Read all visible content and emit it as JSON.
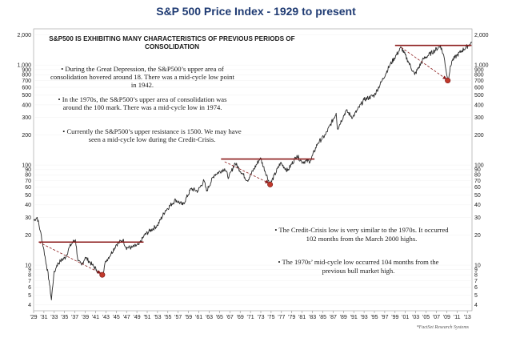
{
  "chart_data": {
    "type": "line",
    "title": "S&P 500 Price Index - 1929 to present",
    "y_scale": "log",
    "ylim": [
      3.5,
      2300
    ],
    "xlim": [
      1929,
      2013.9
    ],
    "y_ticks": [
      {
        "v": 2000,
        "label": "2,000"
      },
      {
        "v": 1000,
        "label": "1,000"
      },
      {
        "v": 900,
        "label": "900"
      },
      {
        "v": 800,
        "label": "800"
      },
      {
        "v": 700,
        "label": "700"
      },
      {
        "v": 600,
        "label": "600"
      },
      {
        "v": 500,
        "label": "500"
      },
      {
        "v": 400,
        "label": "400"
      },
      {
        "v": 300,
        "label": "300"
      },
      {
        "v": 200,
        "label": "200"
      },
      {
        "v": 100,
        "label": "100"
      },
      {
        "v": 90,
        "label": "90"
      },
      {
        "v": 80,
        "label": "80"
      },
      {
        "v": 70,
        "label": "70"
      },
      {
        "v": 60,
        "label": "60"
      },
      {
        "v": 50,
        "label": "50"
      },
      {
        "v": 40,
        "label": "40"
      },
      {
        "v": 30,
        "label": "30"
      },
      {
        "v": 20,
        "label": "20"
      },
      {
        "v": 10,
        "label": "10"
      },
      {
        "v": 9,
        "label": "9"
      },
      {
        "v": 8,
        "label": "8"
      },
      {
        "v": 7,
        "label": "7"
      },
      {
        "v": 6,
        "label": "6"
      },
      {
        "v": 5,
        "label": "5"
      },
      {
        "v": 4,
        "label": "4"
      }
    ],
    "x_ticks": [
      {
        "v": 1929,
        "label": "'29"
      },
      {
        "v": 1931,
        "label": "'31"
      },
      {
        "v": 1933,
        "label": "'33"
      },
      {
        "v": 1935,
        "label": "'35"
      },
      {
        "v": 1937,
        "label": "'37"
      },
      {
        "v": 1939,
        "label": "'39"
      },
      {
        "v": 1941,
        "label": "'41"
      },
      {
        "v": 1943,
        "label": "'43"
      },
      {
        "v": 1945,
        "label": "'45"
      },
      {
        "v": 1947,
        "label": "'47"
      },
      {
        "v": 1949,
        "label": "'49"
      },
      {
        "v": 1951,
        "label": "'51"
      },
      {
        "v": 1953,
        "label": "'53"
      },
      {
        "v": 1955,
        "label": "'55"
      },
      {
        "v": 1957,
        "label": "'57"
      },
      {
        "v": 1959,
        "label": "'59"
      },
      {
        "v": 1961,
        "label": "'61"
      },
      {
        "v": 1963,
        "label": "'63"
      },
      {
        "v": 1965,
        "label": "'65"
      },
      {
        "v": 1967,
        "label": "'67"
      },
      {
        "v": 1969,
        "label": "'69"
      },
      {
        "v": 1971,
        "label": "'71"
      },
      {
        "v": 1973,
        "label": "'73"
      },
      {
        "v": 1975,
        "label": "'75"
      },
      {
        "v": 1977,
        "label": "'77"
      },
      {
        "v": 1979,
        "label": "'79"
      },
      {
        "v": 1981,
        "label": "'81"
      },
      {
        "v": 1983,
        "label": "'83"
      },
      {
        "v": 1985,
        "label": "'85"
      },
      {
        "v": 1987,
        "label": "'87"
      },
      {
        "v": 1989,
        "label": "'89"
      },
      {
        "v": 1991,
        "label": "'91"
      },
      {
        "v": 1993,
        "label": "'93"
      },
      {
        "v": 1995,
        "label": "'95"
      },
      {
        "v": 1997,
        "label": "'97"
      },
      {
        "v": 1999,
        "label": "'99"
      },
      {
        "v": 2001,
        "label": "'01"
      },
      {
        "v": 2003,
        "label": "'03"
      },
      {
        "v": 2005,
        "label": "'05"
      },
      {
        "v": 2007,
        "label": "'07"
      },
      {
        "v": 2009,
        "label": "'09"
      },
      {
        "v": 2011,
        "label": "'11"
      },
      {
        "v": 2013,
        "label": "'13"
      }
    ],
    "series": [
      {
        "x": [
          1929.0,
          1929.7,
          1930.3,
          1930.9,
          1931.5,
          1932.0,
          1932.45,
          1932.9,
          1933.5,
          1934.2,
          1935.2,
          1935.9,
          1936.6,
          1937.1,
          1937.6,
          1938.3,
          1939.0,
          1939.7,
          1940.4,
          1941.2,
          1941.9,
          1942.3,
          1943.0,
          1944.0,
          1945.0,
          1946.3,
          1946.9,
          1948.0,
          1949.4,
          1950.5,
          1951.5,
          1953.0,
          1954.5,
          1956.5,
          1957.9,
          1959.5,
          1960.8,
          1962.0,
          1962.5,
          1964.0,
          1966.0,
          1966.8,
          1968.0,
          1970.4,
          1972.9,
          1974.8,
          1976.8,
          1978.2,
          1980.0,
          1980.9,
          1982.6,
          1984.0,
          1985.5,
          1987.6,
          1987.85,
          1989.5,
          1990.8,
          1993.0,
          1995.0,
          1996.5,
          1998.0,
          2000.2,
          2001.5,
          2002.8,
          2004.5,
          2007.8,
          2008.5,
          2009.2,
          2010.0,
          2011.0,
          2012.0,
          2013.4,
          2013.9
        ],
        "y": [
          28,
          30,
          22,
          15,
          10,
          7,
          4.5,
          8,
          10,
          11,
          12,
          15,
          17,
          18,
          11,
          10,
          12,
          11,
          10,
          9,
          8,
          8,
          11,
          13,
          16,
          18,
          15,
          15,
          16,
          20,
          22,
          25,
          35,
          45,
          40,
          58,
          55,
          70,
          55,
          80,
          92,
          75,
          105,
          70,
          118,
          64,
          105,
          88,
          125,
          108,
          110,
          165,
          200,
          330,
          230,
          350,
          300,
          450,
          500,
          700,
          1000,
          1500,
          1100,
          800,
          1150,
          1550,
          1200,
          700,
          1100,
          1250,
          1400,
          1600,
          1700
        ]
      }
    ],
    "resistance_lines": [
      {
        "x0": 1930.0,
        "x1": 1950.3,
        "y": 17
      },
      {
        "x0": 1965.3,
        "x1": 1983.4,
        "y": 115
      },
      {
        "x0": 1999.0,
        "x1": 2013.8,
        "y": 1570
      }
    ],
    "trend_arrows": [
      {
        "x0": 1930.0,
        "y0": 17,
        "x1": 1942.3,
        "y1": 8
      },
      {
        "x0": 1966.0,
        "y0": 108,
        "x1": 1974.8,
        "y1": 64
      },
      {
        "x0": 2000.2,
        "y0": 1500,
        "x1": 2009.2,
        "y1": 700
      }
    ],
    "lows": [
      {
        "x": 1942.3,
        "y": 8
      },
      {
        "x": 1974.8,
        "y": 64
      },
      {
        "x": 2009.2,
        "y": 700
      }
    ],
    "annotations": {
      "heading": [
        "S&P500 IS EXHIBITING MANY CHARACTERISTICS OF PREVIOUS PERIODS OF",
        "CONSOLIDATION"
      ],
      "bullet1": [
        "•  During the Great Depression, the S&P500’s upper area of",
        "consolidation hovered around 18.  There was a mid-cycle low point",
        "in 1942."
      ],
      "bullet2": [
        "•  In the 1970s, the S&P500’s upper area of consolidation was",
        "around the 100 mark.  There was a mid-cycle low in 1974."
      ],
      "bullet3": [
        "•  Currently the S&P500’s upper resistance is 1500.  We may have",
        "seen a mid-cycle low during the Credit-Crisis."
      ],
      "bullet4": [
        "•  The Credit-Crisis low is very similar to the 1970s.  It occurred",
        "102 months from the March 2000 highs."
      ],
      "bullet5": [
        "•  The 1970s’ mid-cycle low occurred 104 months from the",
        "previous bull market high."
      ],
      "credit": "*FactSet Research Systems"
    },
    "colors": {
      "line": "#2a2a2a",
      "resistance": "#8b1a1a",
      "low_marker": "#c0392b",
      "arrow": "#8b1a1a",
      "title": "#1f3b73"
    }
  }
}
